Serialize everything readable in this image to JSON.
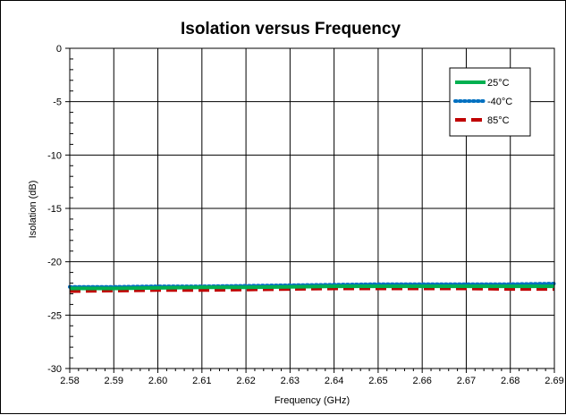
{
  "chart_data": {
    "type": "line",
    "title": "Isolation versus Frequency",
    "xlabel": "Frequency (GHz)",
    "ylabel": "Isolation (dB)",
    "xlim": [
      2.58,
      2.69
    ],
    "ylim": [
      -30,
      0
    ],
    "xticks": [
      "2.58",
      "2.59",
      "2.60",
      "2.61",
      "2.62",
      "2.63",
      "2.64",
      "2.65",
      "2.66",
      "2.67",
      "2.68",
      "2.69"
    ],
    "yticks": [
      "0",
      "-5",
      "-10",
      "-15",
      "-20",
      "-25",
      "-30"
    ],
    "grid": true,
    "legend_position": "top-right",
    "x": [
      2.58,
      2.59,
      2.6,
      2.61,
      2.62,
      2.63,
      2.64,
      2.65,
      2.66,
      2.67,
      2.68,
      2.69
    ],
    "series": [
      {
        "name": "25°C",
        "color": "#00b050",
        "style": "solid",
        "values": [
          -22.5,
          -22.5,
          -22.45,
          -22.4,
          -22.4,
          -22.35,
          -22.3,
          -22.3,
          -22.3,
          -22.3,
          -22.3,
          -22.3
        ]
      },
      {
        "name": "-40°C",
        "color": "#0070c0",
        "style": "dotted",
        "values": [
          -22.35,
          -22.35,
          -22.3,
          -22.3,
          -22.25,
          -22.2,
          -22.15,
          -22.1,
          -22.1,
          -22.1,
          -22.1,
          -22.05
        ]
      },
      {
        "name": "85°C",
        "color": "#c00000",
        "style": "dashed",
        "values": [
          -22.75,
          -22.7,
          -22.65,
          -22.65,
          -22.6,
          -22.55,
          -22.5,
          -22.5,
          -22.5,
          -22.5,
          -22.55,
          -22.55
        ]
      }
    ]
  }
}
